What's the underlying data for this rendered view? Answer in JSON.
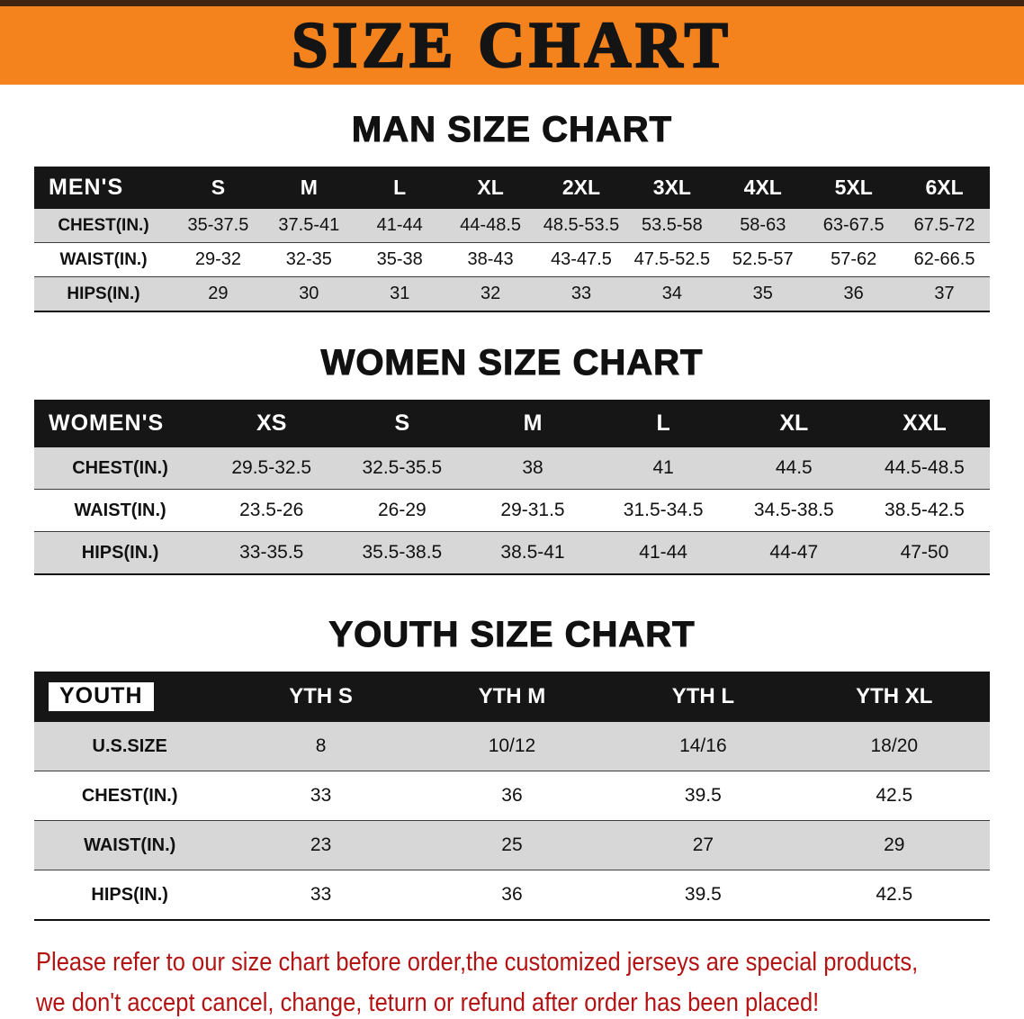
{
  "banner": {
    "title": "SIZE CHART",
    "bg_color": "#f5831d"
  },
  "sections": [
    {
      "heading": "MAN SIZE CHART",
      "table": {
        "header": [
          "MEN'S",
          "S",
          "M",
          "L",
          "XL",
          "2XL",
          "3XL",
          "4XL",
          "5XL",
          "6XL"
        ],
        "rows": [
          {
            "label": "CHEST(IN.)",
            "values": [
              "35-37.5",
              "37.5-41",
              "41-44",
              "44-48.5",
              "48.5-53.5",
              "53.5-58",
              "58-63",
              "63-67.5",
              "67.5-72"
            ]
          },
          {
            "label": "WAIST(IN.)",
            "values": [
              "29-32",
              "32-35",
              "35-38",
              "38-43",
              "43-47.5",
              "47.5-52.5",
              "52.5-57",
              "57-62",
              "62-66.5"
            ]
          },
          {
            "label": "HIPS(IN.)",
            "values": [
              "29",
              "30",
              "31",
              "32",
              "33",
              "34",
              "35",
              "36",
              "37"
            ]
          }
        ]
      }
    },
    {
      "heading": "WOMEN SIZE CHART",
      "table": {
        "header": [
          "WOMEN'S",
          "XS",
          "S",
          "M",
          "L",
          "XL",
          "XXL"
        ],
        "rows": [
          {
            "label": "CHEST(IN.)",
            "values": [
              "29.5-32.5",
              "32.5-35.5",
              "38",
              "41",
              "44.5",
              "44.5-48.5"
            ]
          },
          {
            "label": "WAIST(IN.)",
            "values": [
              "23.5-26",
              "26-29",
              "29-31.5",
              "31.5-34.5",
              "34.5-38.5",
              "38.5-42.5"
            ]
          },
          {
            "label": "HIPS(IN.)",
            "values": [
              "33-35.5",
              "35.5-38.5",
              "38.5-41",
              "41-44",
              "44-47",
              "47-50"
            ]
          }
        ]
      }
    },
    {
      "heading": "YOUTH SIZE CHART",
      "table": {
        "header": [
          "YOUTH",
          "YTH S",
          "YTH M",
          "YTH L",
          "YTH XL"
        ],
        "rows": [
          {
            "label": "U.S.SIZE",
            "values": [
              "8",
              "10/12",
              "14/16",
              "18/20"
            ]
          },
          {
            "label": "CHEST(IN.)",
            "values": [
              "33",
              "36",
              "39.5",
              "42.5"
            ]
          },
          {
            "label": "WAIST(IN.)",
            "values": [
              "23",
              "25",
              "27",
              "29"
            ]
          },
          {
            "label": "HIPS(IN.)",
            "values": [
              "33",
              "36",
              "39.5",
              "42.5"
            ]
          }
        ]
      }
    }
  ],
  "footer": {
    "lines": [
      "Please refer to our size chart before order,the customized jerseys are special products,",
      "we don't accept cancel, change, teturn or refund after order has been placed!"
    ],
    "text_color": "#b41313"
  }
}
